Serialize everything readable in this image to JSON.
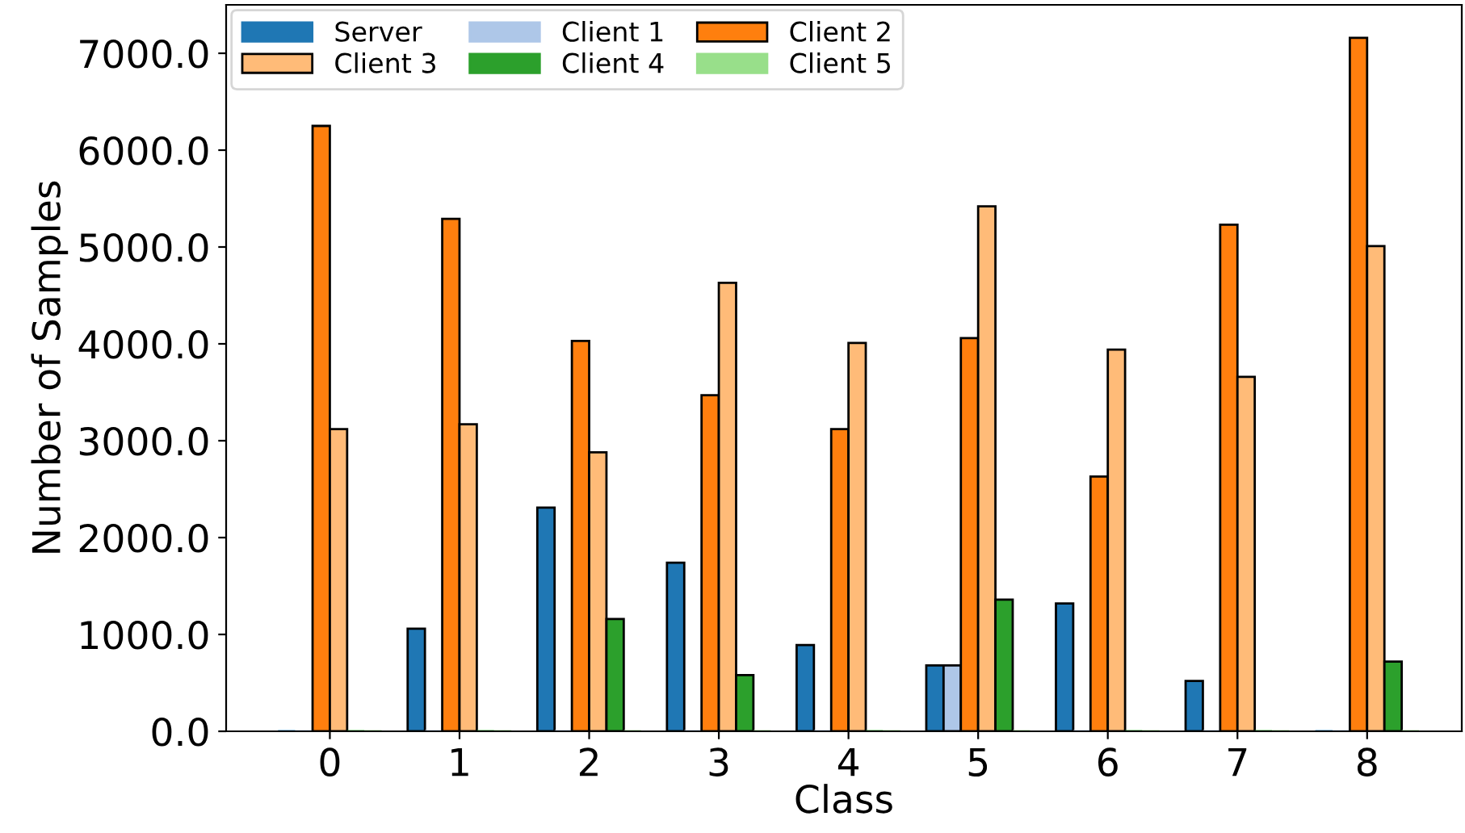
{
  "chart_data": {
    "type": "bar",
    "xlabel": "Class",
    "ylabel": "Number of Samples",
    "categories": [
      "0",
      "1",
      "2",
      "3",
      "4",
      "5",
      "6",
      "7",
      "8"
    ],
    "series": [
      {
        "name": "Server",
        "color": "#1f77b4",
        "values": [
          0,
          1060,
          2310,
          1740,
          890,
          680,
          1320,
          520,
          0
        ]
      },
      {
        "name": "Client 1",
        "color": "#aec7e8",
        "values": [
          0,
          0,
          0,
          0,
          0,
          680,
          0,
          0,
          0
        ]
      },
      {
        "name": "Client 2",
        "color": "#ff7f0e",
        "values": [
          6250,
          5290,
          4030,
          3470,
          3120,
          4060,
          2630,
          5230,
          7160
        ]
      },
      {
        "name": "Client 3",
        "color": "#ffbb78",
        "values": [
          3120,
          3170,
          2880,
          4630,
          4010,
          5420,
          3940,
          3660,
          5010
        ]
      },
      {
        "name": "Client 4",
        "color": "#2ca02c",
        "values": [
          0,
          0,
          1160,
          580,
          0,
          1360,
          0,
          0,
          720
        ]
      },
      {
        "name": "Client 5",
        "color": "#98df8a",
        "values": [
          0,
          0,
          0,
          0,
          0,
          0,
          0,
          0,
          0
        ]
      }
    ],
    "ylim": [
      0,
      7500
    ],
    "yticks": [
      {
        "value": 0,
        "label": "0.0"
      },
      {
        "value": 1000,
        "label": "1000.0"
      },
      {
        "value": 2000,
        "label": "2000.0"
      },
      {
        "value": 3000,
        "label": "3000.0"
      },
      {
        "value": 4000,
        "label": "4000.0"
      },
      {
        "value": 5000,
        "label": "5000.0"
      },
      {
        "value": 6000,
        "label": "6000.0"
      },
      {
        "value": 7000,
        "label": "7000.0"
      }
    ],
    "legend": "top left",
    "grid": false
  }
}
